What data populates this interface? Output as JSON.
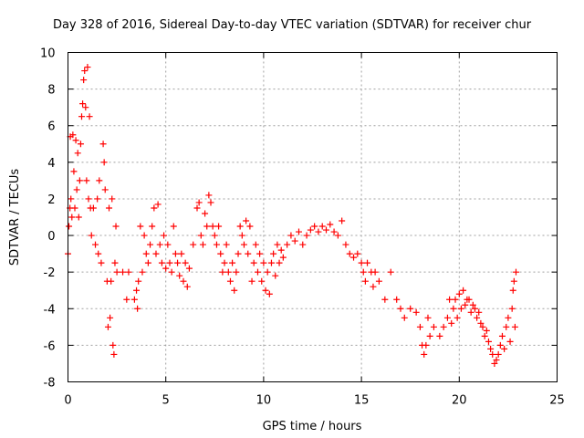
{
  "chart_data": {
    "type": "scatter",
    "title": "Day 328 of 2016, Sidereal Day-to-day VTEC variation (SDTVAR) for receiver chur",
    "xlabel": "GPS time / hours",
    "ylabel": "SDTVAR / TECUs",
    "xlim": [
      0,
      25
    ],
    "ylim": [
      -8,
      10
    ],
    "xticks": [
      0,
      5,
      10,
      15,
      20,
      25
    ],
    "yticks": [
      -8,
      -6,
      -4,
      -2,
      0,
      2,
      4,
      6,
      8,
      10
    ],
    "grid": true,
    "marker": "+",
    "marker_color": "#ff0000",
    "series": [
      {
        "name": "SDTVAR",
        "points": [
          [
            0.0,
            -1.0
          ],
          [
            0.05,
            0.5
          ],
          [
            0.1,
            1.5
          ],
          [
            0.12,
            5.4
          ],
          [
            0.15,
            2.0
          ],
          [
            0.2,
            1.0
          ],
          [
            0.25,
            5.5
          ],
          [
            0.3,
            3.5
          ],
          [
            0.35,
            1.5
          ],
          [
            0.4,
            5.2
          ],
          [
            0.45,
            2.5
          ],
          [
            0.5,
            4.5
          ],
          [
            0.55,
            1.0
          ],
          [
            0.6,
            3.0
          ],
          [
            0.65,
            5.0
          ],
          [
            0.7,
            6.5
          ],
          [
            0.75,
            7.2
          ],
          [
            0.8,
            8.5
          ],
          [
            0.85,
            9.0
          ],
          [
            0.9,
            7.0
          ],
          [
            0.95,
            3.0
          ],
          [
            1.0,
            9.2
          ],
          [
            1.05,
            2.0
          ],
          [
            1.1,
            6.5
          ],
          [
            1.15,
            1.5
          ],
          [
            1.2,
            0.0
          ],
          [
            1.3,
            1.5
          ],
          [
            1.4,
            -0.5
          ],
          [
            1.5,
            2.0
          ],
          [
            1.55,
            -1.0
          ],
          [
            1.6,
            3.0
          ],
          [
            1.7,
            -1.5
          ],
          [
            1.8,
            5.0
          ],
          [
            1.85,
            4.0
          ],
          [
            1.9,
            2.5
          ],
          [
            2.0,
            -2.5
          ],
          [
            2.05,
            -5.0
          ],
          [
            2.1,
            1.5
          ],
          [
            2.15,
            -4.5
          ],
          [
            2.2,
            -2.5
          ],
          [
            2.25,
            2.0
          ],
          [
            2.3,
            -6.0
          ],
          [
            2.35,
            -6.5
          ],
          [
            2.4,
            -1.5
          ],
          [
            2.45,
            0.5
          ],
          [
            2.5,
            -2.0
          ],
          [
            2.8,
            -2.0
          ],
          [
            3.0,
            -3.5
          ],
          [
            3.1,
            -2.0
          ],
          [
            3.4,
            -3.5
          ],
          [
            3.5,
            -3.0
          ],
          [
            3.55,
            -4.0
          ],
          [
            3.6,
            -2.5
          ],
          [
            3.7,
            0.5
          ],
          [
            3.8,
            -2.0
          ],
          [
            3.9,
            0.0
          ],
          [
            4.0,
            -1.0
          ],
          [
            4.1,
            -1.5
          ],
          [
            4.2,
            -0.5
          ],
          [
            4.3,
            0.5
          ],
          [
            4.4,
            1.5
          ],
          [
            4.5,
            -1.0
          ],
          [
            4.6,
            1.7
          ],
          [
            4.7,
            -0.5
          ],
          [
            4.8,
            -1.5
          ],
          [
            4.9,
            0.0
          ],
          [
            5.0,
            -1.8
          ],
          [
            5.1,
            -0.5
          ],
          [
            5.2,
            -1.5
          ],
          [
            5.3,
            -2.0
          ],
          [
            5.4,
            0.5
          ],
          [
            5.5,
            -1.0
          ],
          [
            5.6,
            -1.5
          ],
          [
            5.7,
            -2.2
          ],
          [
            5.8,
            -1.0
          ],
          [
            5.9,
            -2.5
          ],
          [
            6.0,
            -1.5
          ],
          [
            6.1,
            -2.8
          ],
          [
            6.2,
            -1.8
          ],
          [
            6.4,
            -0.5
          ],
          [
            6.6,
            1.5
          ],
          [
            6.7,
            1.8
          ],
          [
            6.8,
            0.0
          ],
          [
            6.9,
            -0.5
          ],
          [
            7.0,
            1.2
          ],
          [
            7.1,
            0.5
          ],
          [
            7.2,
            2.2
          ],
          [
            7.3,
            1.8
          ],
          [
            7.4,
            0.5
          ],
          [
            7.5,
            0.0
          ],
          [
            7.6,
            -0.5
          ],
          [
            7.7,
            0.5
          ],
          [
            7.8,
            -1.0
          ],
          [
            7.9,
            -2.0
          ],
          [
            8.0,
            -1.5
          ],
          [
            8.1,
            -0.5
          ],
          [
            8.2,
            -2.0
          ],
          [
            8.3,
            -2.5
          ],
          [
            8.4,
            -1.5
          ],
          [
            8.5,
            -3.0
          ],
          [
            8.6,
            -2.0
          ],
          [
            8.7,
            -1.0
          ],
          [
            8.8,
            0.5
          ],
          [
            8.9,
            0.0
          ],
          [
            9.0,
            -0.5
          ],
          [
            9.1,
            0.8
          ],
          [
            9.2,
            -1.0
          ],
          [
            9.3,
            0.5
          ],
          [
            9.4,
            -2.5
          ],
          [
            9.5,
            -1.5
          ],
          [
            9.6,
            -0.5
          ],
          [
            9.7,
            -2.0
          ],
          [
            9.8,
            -1.0
          ],
          [
            9.9,
            -2.5
          ],
          [
            10.0,
            -1.5
          ],
          [
            10.1,
            -3.0
          ],
          [
            10.2,
            -2.0
          ],
          [
            10.3,
            -3.2
          ],
          [
            10.4,
            -1.5
          ],
          [
            10.5,
            -1.0
          ],
          [
            10.6,
            -2.2
          ],
          [
            10.7,
            -0.5
          ],
          [
            10.8,
            -1.5
          ],
          [
            10.9,
            -0.8
          ],
          [
            11.0,
            -1.2
          ],
          [
            11.2,
            -0.5
          ],
          [
            11.4,
            0.0
          ],
          [
            11.6,
            -0.3
          ],
          [
            11.8,
            0.2
          ],
          [
            12.0,
            -0.5
          ],
          [
            12.2,
            0.0
          ],
          [
            12.4,
            0.3
          ],
          [
            12.6,
            0.5
          ],
          [
            12.8,
            0.2
          ],
          [
            13.0,
            0.5
          ],
          [
            13.2,
            0.3
          ],
          [
            13.4,
            0.6
          ],
          [
            13.6,
            0.2
          ],
          [
            13.8,
            0.0
          ],
          [
            14.0,
            0.8
          ],
          [
            14.2,
            -0.5
          ],
          [
            14.4,
            -1.0
          ],
          [
            14.6,
            -1.2
          ],
          [
            14.8,
            -1.0
          ],
          [
            15.0,
            -1.5
          ],
          [
            15.1,
            -2.0
          ],
          [
            15.2,
            -2.5
          ],
          [
            15.3,
            -1.5
          ],
          [
            15.5,
            -2.0
          ],
          [
            15.6,
            -2.8
          ],
          [
            15.7,
            -2.0
          ],
          [
            15.9,
            -2.5
          ],
          [
            16.2,
            -3.5
          ],
          [
            16.5,
            -2.0
          ],
          [
            16.8,
            -3.5
          ],
          [
            17.0,
            -4.0
          ],
          [
            17.2,
            -4.5
          ],
          [
            17.5,
            -4.0
          ],
          [
            17.8,
            -4.2
          ],
          [
            18.0,
            -5.0
          ],
          [
            18.1,
            -6.0
          ],
          [
            18.2,
            -6.5
          ],
          [
            18.3,
            -6.0
          ],
          [
            18.4,
            -4.5
          ],
          [
            18.5,
            -5.5
          ],
          [
            18.7,
            -5.0
          ],
          [
            19.0,
            -5.5
          ],
          [
            19.2,
            -5.0
          ],
          [
            19.4,
            -4.5
          ],
          [
            19.5,
            -3.5
          ],
          [
            19.6,
            -4.8
          ],
          [
            19.7,
            -4.0
          ],
          [
            19.8,
            -3.5
          ],
          [
            19.9,
            -4.5
          ],
          [
            20.0,
            -3.2
          ],
          [
            20.1,
            -4.0
          ],
          [
            20.2,
            -3.0
          ],
          [
            20.3,
            -3.8
          ],
          [
            20.4,
            -3.5
          ],
          [
            20.5,
            -3.5
          ],
          [
            20.6,
            -4.2
          ],
          [
            20.7,
            -3.8
          ],
          [
            20.8,
            -4.0
          ],
          [
            20.9,
            -4.5
          ],
          [
            21.0,
            -4.2
          ],
          [
            21.1,
            -4.8
          ],
          [
            21.2,
            -5.0
          ],
          [
            21.3,
            -5.5
          ],
          [
            21.4,
            -5.2
          ],
          [
            21.5,
            -5.8
          ],
          [
            21.6,
            -6.2
          ],
          [
            21.7,
            -6.5
          ],
          [
            21.8,
            -7.0
          ],
          [
            21.9,
            -6.8
          ],
          [
            22.0,
            -6.5
          ],
          [
            22.1,
            -6.0
          ],
          [
            22.2,
            -5.5
          ],
          [
            22.3,
            -6.2
          ],
          [
            22.4,
            -5.0
          ],
          [
            22.5,
            -4.5
          ],
          [
            22.6,
            -5.8
          ],
          [
            22.7,
            -4.0
          ],
          [
            22.75,
            -3.0
          ],
          [
            22.8,
            -2.5
          ],
          [
            22.85,
            -5.0
          ],
          [
            22.9,
            -2.0
          ]
        ]
      }
    ]
  }
}
